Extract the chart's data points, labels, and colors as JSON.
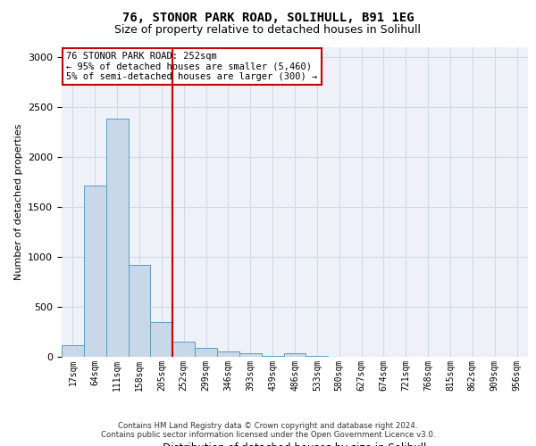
{
  "title_line1": "76, STONOR PARK ROAD, SOLIHULL, B91 1EG",
  "title_line2": "Size of property relative to detached houses in Solihull",
  "xlabel": "Distribution of detached houses by size in Solihull",
  "ylabel": "Number of detached properties",
  "footer_line1": "Contains HM Land Registry data © Crown copyright and database right 2024.",
  "footer_line2": "Contains public sector information licensed under the Open Government Licence v3.0.",
  "bins": [
    "17sqm",
    "64sqm",
    "111sqm",
    "158sqm",
    "205sqm",
    "252sqm",
    "299sqm",
    "346sqm",
    "393sqm",
    "439sqm",
    "486sqm",
    "533sqm",
    "580sqm",
    "627sqm",
    "674sqm",
    "721sqm",
    "768sqm",
    "815sqm",
    "862sqm",
    "909sqm",
    "956sqm"
  ],
  "bar_heights": [
    115,
    1710,
    2380,
    920,
    350,
    155,
    85,
    55,
    35,
    5,
    35,
    5,
    0,
    0,
    0,
    0,
    0,
    0,
    0,
    0,
    0
  ],
  "bar_color": "#c8d8e8",
  "bar_edge_color": "#5a9dc8",
  "vline_index": 5,
  "vline_color": "#cc0000",
  "annotation_line1": "76 STONOR PARK ROAD: 252sqm",
  "annotation_line2": "← 95% of detached houses are smaller (5,460)",
  "annotation_line3": "5% of semi-detached houses are larger (300) →",
  "annotation_box_color": "#ffffff",
  "annotation_box_edge_color": "#cc0000",
  "ylim": [
    0,
    3100
  ],
  "yticks": [
    0,
    500,
    1000,
    1500,
    2000,
    2500,
    3000
  ],
  "grid_color": "#d0d8e8",
  "bg_color": "#eef2f8"
}
